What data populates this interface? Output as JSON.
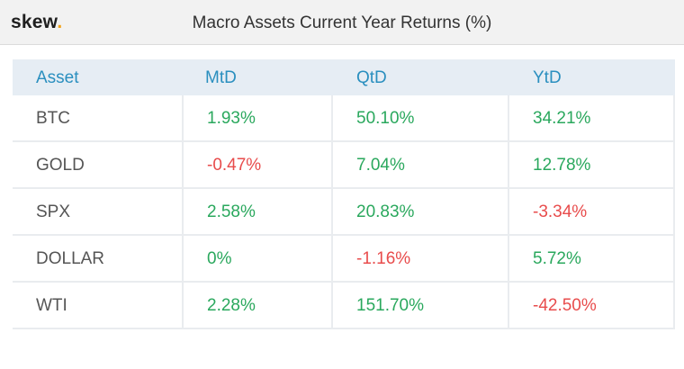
{
  "header": {
    "logo_text": "skew",
    "logo_dot": ".",
    "title": "Macro Assets Current Year Returns (%)"
  },
  "colors": {
    "positive": "#2aa85d",
    "negative": "#e84c4c",
    "header_text": "#2a8fbf",
    "header_bg": "#e6edf4",
    "logo_dot": "#f2a31a"
  },
  "chart_data": {
    "type": "table",
    "title": "Macro Assets Current Year Returns (%)",
    "columns": [
      "Asset",
      "MtD",
      "QtD",
      "YtD"
    ],
    "rows": [
      {
        "asset": "BTC",
        "mtd": "1.93%",
        "qtd": "50.10%",
        "ytd": "34.21%"
      },
      {
        "asset": "GOLD",
        "mtd": "-0.47%",
        "qtd": "7.04%",
        "ytd": "12.78%"
      },
      {
        "asset": "SPX",
        "mtd": "2.58%",
        "qtd": "20.83%",
        "ytd": "-3.34%"
      },
      {
        "asset": "DOLLAR",
        "mtd": "0%",
        "qtd": "-1.16%",
        "ytd": "5.72%"
      },
      {
        "asset": "WTI",
        "mtd": "2.28%",
        "qtd": "151.70%",
        "ytd": "-42.50%"
      }
    ]
  }
}
